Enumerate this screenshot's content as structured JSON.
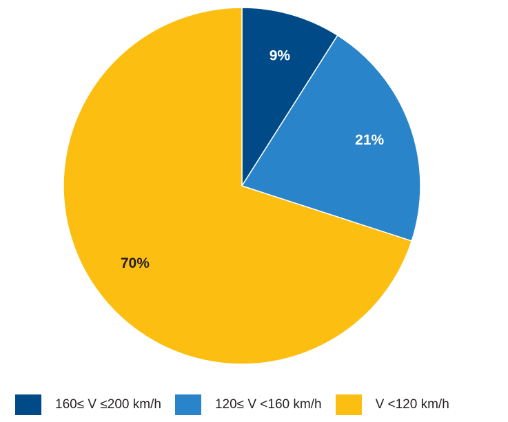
{
  "chart_data": {
    "type": "pie",
    "title": "",
    "slices": [
      {
        "label": "160≤ V ≤200 km/h",
        "value": 9,
        "value_label": "9%",
        "color": "#004b87",
        "label_color": "#ffffff"
      },
      {
        "label": "120≤ V <160 km/h",
        "value": 21,
        "value_label": "21%",
        "color": "#2a84c9",
        "label_color": "#ffffff"
      },
      {
        "label": "V <120 km/h",
        "value": 70,
        "value_label": "70%",
        "color": "#fdbe12",
        "label_color": "#231f20"
      }
    ],
    "legend_position": "bottom"
  },
  "legend": {
    "items": [
      {
        "label": "160≤ V ≤200 km/h",
        "color": "#004b87"
      },
      {
        "label": "120≤ V <160 km/h",
        "color": "#2a84c9"
      },
      {
        "label": "V <120 km/h",
        "color": "#fdbe12"
      }
    ]
  }
}
